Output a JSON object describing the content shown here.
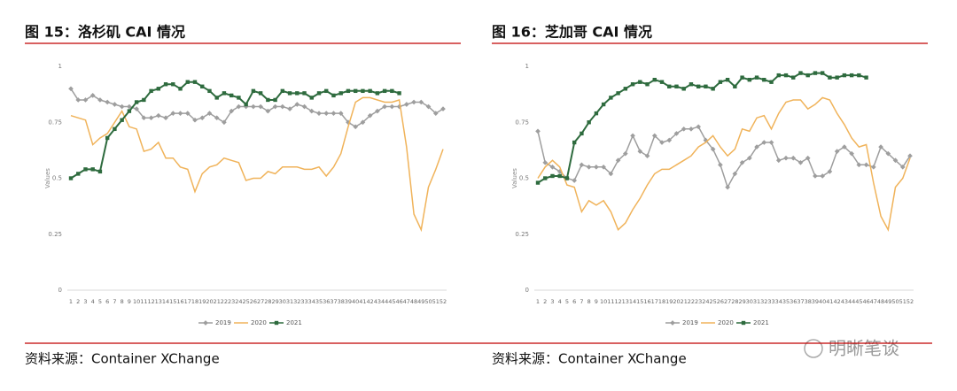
{
  "chart_data": [
    {
      "type": "line",
      "title": "图 15：洛杉矶 CAI 情况",
      "y_label": "Values",
      "source": "资料来源：Container XChange",
      "categories": [
        "1",
        "2",
        "3",
        "4",
        "5",
        "6",
        "7",
        "8",
        "9",
        "10",
        "11",
        "12",
        "13",
        "14",
        "15",
        "16",
        "17",
        "18",
        "19",
        "20",
        "21",
        "22",
        "23",
        "24",
        "25",
        "26",
        "27",
        "28",
        "29",
        "30",
        "31",
        "32",
        "33",
        "34",
        "35",
        "36",
        "37",
        "38",
        "39",
        "40",
        "41",
        "42",
        "43",
        "44",
        "45",
        "46",
        "47",
        "48",
        "49",
        "50",
        "51",
        "52"
      ],
      "ylim": [
        0,
        1
      ],
      "yticks": [
        0,
        0.25,
        0.5,
        0.75,
        1
      ],
      "grid": false,
      "legend": "bottom",
      "series": [
        {
          "name": "2019",
          "color": "#9e9e9e",
          "values": [
            0.9,
            0.85,
            0.85,
            0.87,
            0.85,
            0.84,
            0.83,
            0.82,
            0.82,
            0.81,
            0.77,
            0.77,
            0.78,
            0.77,
            0.79,
            0.79,
            0.79,
            0.76,
            0.77,
            0.79,
            0.77,
            0.75,
            0.8,
            0.82,
            0.82,
            0.82,
            0.82,
            0.8,
            0.82,
            0.82,
            0.81,
            0.83,
            0.82,
            0.8,
            0.79,
            0.79,
            0.79,
            0.79,
            0.75,
            0.73,
            0.75,
            0.78,
            0.8,
            0.82,
            0.82,
            0.82,
            0.83,
            0.84,
            0.84,
            0.82,
            0.79,
            0.81
          ]
        },
        {
          "name": "2020",
          "color": "#f0b35a",
          "values": [
            0.78,
            0.77,
            0.76,
            0.65,
            0.68,
            0.7,
            0.75,
            0.8,
            0.73,
            0.72,
            0.62,
            0.63,
            0.66,
            0.59,
            0.59,
            0.55,
            0.54,
            0.44,
            0.52,
            0.55,
            0.56,
            0.59,
            0.58,
            0.57,
            0.49,
            0.5,
            0.5,
            0.53,
            0.52,
            0.55,
            0.55,
            0.55,
            0.54,
            0.54,
            0.55,
            0.51,
            0.55,
            0.61,
            0.73,
            0.84,
            0.86,
            0.86,
            0.85,
            0.84,
            0.84,
            0.85,
            0.64,
            0.34,
            0.27,
            0.46,
            0.54,
            0.63
          ]
        },
        {
          "name": "2021",
          "color": "#2e6b3e",
          "values": [
            0.5,
            0.52,
            0.54,
            0.54,
            0.53,
            0.68,
            0.72,
            0.76,
            0.8,
            0.84,
            0.85,
            0.89,
            0.9,
            0.92,
            0.92,
            0.9,
            0.93,
            0.93,
            0.91,
            0.89,
            0.86,
            0.88,
            0.87,
            0.86,
            0.83,
            0.89,
            0.88,
            0.85,
            0.85,
            0.89,
            0.88,
            0.88,
            0.88,
            0.86,
            0.88,
            0.89,
            0.87,
            0.88,
            0.89,
            0.89,
            0.89,
            0.89,
            0.88,
            0.89,
            0.89,
            0.88,
            null,
            null,
            null,
            null,
            null,
            null
          ]
        }
      ]
    },
    {
      "type": "line",
      "title": "图 16：芝加哥 CAI 情况",
      "y_label": "Values",
      "source": "资料来源：Container XChange",
      "categories": [
        "1",
        "2",
        "3",
        "4",
        "5",
        "6",
        "7",
        "8",
        "9",
        "10",
        "11",
        "12",
        "13",
        "14",
        "15",
        "16",
        "17",
        "18",
        "19",
        "20",
        "21",
        "22",
        "23",
        "24",
        "25",
        "26",
        "27",
        "28",
        "29",
        "30",
        "31",
        "32",
        "33",
        "34",
        "35",
        "36",
        "37",
        "38",
        "39",
        "40",
        "41",
        "42",
        "43",
        "44",
        "45",
        "46",
        "47",
        "48",
        "49",
        "50",
        "51",
        "52"
      ],
      "ylim": [
        0,
        1
      ],
      "yticks": [
        0,
        0.25,
        0.5,
        0.75,
        1
      ],
      "grid": false,
      "legend": "bottom",
      "series": [
        {
          "name": "2019",
          "color": "#9e9e9e",
          "values": [
            0.71,
            0.57,
            0.55,
            0.53,
            0.5,
            0.49,
            0.56,
            0.55,
            0.55,
            0.55,
            0.52,
            0.58,
            0.61,
            0.69,
            0.62,
            0.6,
            0.69,
            0.66,
            0.67,
            0.7,
            0.72,
            0.72,
            0.73,
            0.67,
            0.63,
            0.56,
            0.46,
            0.52,
            0.57,
            0.59,
            0.64,
            0.66,
            0.66,
            0.58,
            0.59,
            0.59,
            0.57,
            0.59,
            0.51,
            0.51,
            0.53,
            0.62,
            0.64,
            0.61,
            0.56,
            0.56,
            0.55,
            0.64,
            0.61,
            0.58,
            0.55,
            0.6
          ]
        },
        {
          "name": "2020",
          "color": "#f0b35a",
          "values": [
            0.5,
            0.55,
            0.58,
            0.55,
            0.47,
            0.46,
            0.35,
            0.4,
            0.38,
            0.4,
            0.35,
            0.27,
            0.3,
            0.36,
            0.41,
            0.47,
            0.52,
            0.54,
            0.54,
            0.56,
            0.58,
            0.6,
            0.64,
            0.66,
            0.69,
            0.64,
            0.6,
            0.63,
            0.72,
            0.71,
            0.77,
            0.78,
            0.72,
            0.79,
            0.84,
            0.85,
            0.85,
            0.81,
            0.83,
            0.86,
            0.85,
            0.79,
            0.74,
            0.68,
            0.64,
            0.65,
            0.48,
            0.33,
            0.27,
            0.46,
            0.5,
            0.59
          ]
        },
        {
          "name": "2021",
          "color": "#2e6b3e",
          "values": [
            0.48,
            0.5,
            0.51,
            0.51,
            0.5,
            0.66,
            0.7,
            0.75,
            0.79,
            0.83,
            0.86,
            0.88,
            0.9,
            0.92,
            0.93,
            0.92,
            0.94,
            0.93,
            0.91,
            0.91,
            0.9,
            0.92,
            0.91,
            0.91,
            0.9,
            0.93,
            0.94,
            0.91,
            0.95,
            0.94,
            0.95,
            0.94,
            0.93,
            0.96,
            0.96,
            0.95,
            0.97,
            0.96,
            0.97,
            0.97,
            0.95,
            0.95,
            0.96,
            0.96,
            0.96,
            0.95,
            null,
            null,
            null,
            null,
            null,
            null
          ]
        }
      ]
    }
  ],
  "watermark": "明晰笔谈"
}
